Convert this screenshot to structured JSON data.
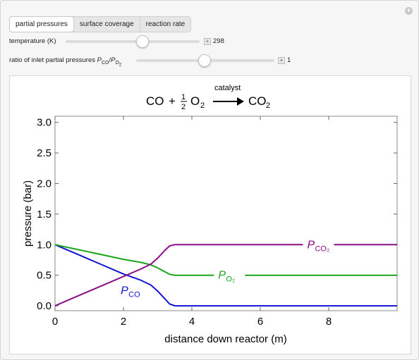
{
  "controls": {
    "tabs": [
      {
        "label": "partial pressures",
        "active": true
      },
      {
        "label": "surface coverage",
        "active": false
      },
      {
        "label": "reaction rate",
        "active": false
      }
    ],
    "temperature": {
      "label": "temperature (K)",
      "value": "298",
      "fraction": 0.57
    },
    "ratio": {
      "label_prefix": "ratio of inlet partial pressures ",
      "value": "1",
      "fraction": 0.49
    }
  },
  "equation": {
    "reactant1": "CO",
    "plus": "+",
    "half_num": "1",
    "half_den": "2",
    "reactant2": "O",
    "reactant2_sub": "2",
    "catalyst": "catalyst",
    "product": "CO",
    "product_sub": "2"
  },
  "chart_data": {
    "type": "line",
    "xlabel": "distance down reactor (m)",
    "ylabel": "pressure (bar)",
    "xlim": [
      0,
      10
    ],
    "ylim": [
      -0.08,
      3.1
    ],
    "xticks": [
      0,
      2,
      4,
      6,
      8
    ],
    "yticks": [
      0.0,
      0.5,
      1.0,
      1.5,
      2.0,
      2.5,
      3.0
    ],
    "colors": {
      "P_CO": "#1414d4",
      "P_O2": "#1aa51a",
      "P_CO2": "#8b0f84"
    },
    "series": [
      {
        "name": "P_CO",
        "label": "P",
        "label_sub": "CO",
        "x": [
          0,
          0.5,
          1.0,
          1.5,
          2.0,
          2.5,
          2.8,
          3.0,
          3.2,
          3.35,
          3.5,
          4,
          6,
          8,
          10
        ],
        "y": [
          1.0,
          0.88,
          0.76,
          0.64,
          0.52,
          0.42,
          0.34,
          0.24,
          0.12,
          0.03,
          0.0,
          0.0,
          0.0,
          0.0,
          0.0
        ]
      },
      {
        "name": "P_O2",
        "label": "P",
        "label_sub": "O₂",
        "x": [
          0,
          0.5,
          1.0,
          1.5,
          2.0,
          2.5,
          2.8,
          3.0,
          3.2,
          3.35,
          3.5,
          4,
          6,
          8,
          10
        ],
        "y": [
          1.0,
          0.94,
          0.88,
          0.82,
          0.76,
          0.71,
          0.67,
          0.62,
          0.56,
          0.515,
          0.5,
          0.5,
          0.5,
          0.5,
          0.5
        ]
      },
      {
        "name": "P_CO2",
        "label": "P",
        "label_sub": "CO₂",
        "x": [
          0,
          0.5,
          1.0,
          1.5,
          2.0,
          2.5,
          2.8,
          3.0,
          3.2,
          3.35,
          3.5,
          4,
          6,
          8,
          10
        ],
        "y": [
          0.0,
          0.12,
          0.24,
          0.36,
          0.48,
          0.6,
          0.68,
          0.78,
          0.9,
          0.98,
          1.0,
          1.0,
          1.0,
          1.0,
          1.0
        ]
      }
    ]
  }
}
